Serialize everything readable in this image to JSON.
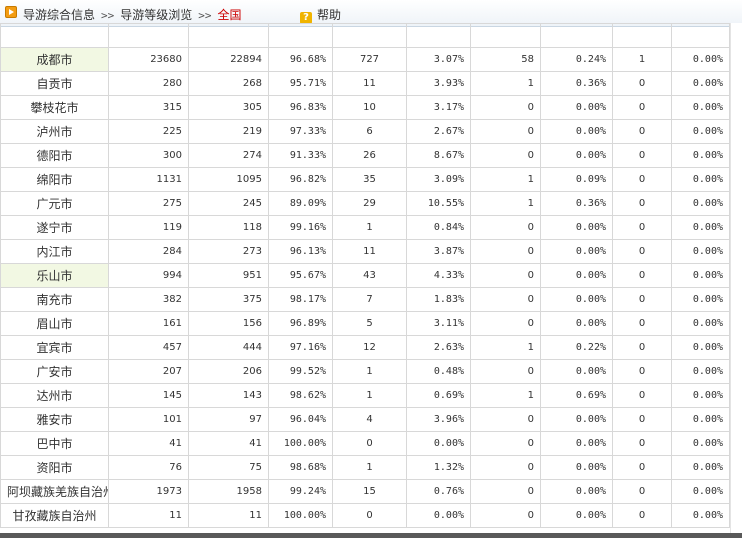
{
  "breadcrumb": {
    "items": [
      "导游综合信息",
      "导游等级浏览",
      "全国"
    ],
    "separator": ">>"
  },
  "help_label": "帮助",
  "highlight_color": "#f2f8e3",
  "rows": [
    {
      "city": "成都市",
      "c1": "23680",
      "c2": "22894",
      "p1": "96.68%",
      "c3": "727",
      "p2": "3.07%",
      "c4": "58",
      "p3": "0.24%",
      "c5": "1",
      "p4": "0.00%",
      "hl": true
    },
    {
      "city": "自贡市",
      "c1": "280",
      "c2": "268",
      "p1": "95.71%",
      "c3": "11",
      "p2": "3.93%",
      "c4": "1",
      "p3": "0.36%",
      "c5": "0",
      "p4": "0.00%"
    },
    {
      "city": "攀枝花市",
      "c1": "315",
      "c2": "305",
      "p1": "96.83%",
      "c3": "10",
      "p2": "3.17%",
      "c4": "0",
      "p3": "0.00%",
      "c5": "0",
      "p4": "0.00%"
    },
    {
      "city": "泸州市",
      "c1": "225",
      "c2": "219",
      "p1": "97.33%",
      "c3": "6",
      "p2": "2.67%",
      "c4": "0",
      "p3": "0.00%",
      "c5": "0",
      "p4": "0.00%"
    },
    {
      "city": "德阳市",
      "c1": "300",
      "c2": "274",
      "p1": "91.33%",
      "c3": "26",
      "p2": "8.67%",
      "c4": "0",
      "p3": "0.00%",
      "c5": "0",
      "p4": "0.00%"
    },
    {
      "city": "绵阳市",
      "c1": "1131",
      "c2": "1095",
      "p1": "96.82%",
      "c3": "35",
      "p2": "3.09%",
      "c4": "1",
      "p3": "0.09%",
      "c5": "0",
      "p4": "0.00%"
    },
    {
      "city": "广元市",
      "c1": "275",
      "c2": "245",
      "p1": "89.09%",
      "c3": "29",
      "p2": "10.55%",
      "c4": "1",
      "p3": "0.36%",
      "c5": "0",
      "p4": "0.00%"
    },
    {
      "city": "遂宁市",
      "c1": "119",
      "c2": "118",
      "p1": "99.16%",
      "c3": "1",
      "p2": "0.84%",
      "c4": "0",
      "p3": "0.00%",
      "c5": "0",
      "p4": "0.00%"
    },
    {
      "city": "内江市",
      "c1": "284",
      "c2": "273",
      "p1": "96.13%",
      "c3": "11",
      "p2": "3.87%",
      "c4": "0",
      "p3": "0.00%",
      "c5": "0",
      "p4": "0.00%"
    },
    {
      "city": "乐山市",
      "c1": "994",
      "c2": "951",
      "p1": "95.67%",
      "c3": "43",
      "p2": "4.33%",
      "c4": "0",
      "p3": "0.00%",
      "c5": "0",
      "p4": "0.00%",
      "hl": true
    },
    {
      "city": "南充市",
      "c1": "382",
      "c2": "375",
      "p1": "98.17%",
      "c3": "7",
      "p2": "1.83%",
      "c4": "0",
      "p3": "0.00%",
      "c5": "0",
      "p4": "0.00%"
    },
    {
      "city": "眉山市",
      "c1": "161",
      "c2": "156",
      "p1": "96.89%",
      "c3": "5",
      "p2": "3.11%",
      "c4": "0",
      "p3": "0.00%",
      "c5": "0",
      "p4": "0.00%"
    },
    {
      "city": "宜宾市",
      "c1": "457",
      "c2": "444",
      "p1": "97.16%",
      "c3": "12",
      "p2": "2.63%",
      "c4": "1",
      "p3": "0.22%",
      "c5": "0",
      "p4": "0.00%"
    },
    {
      "city": "广安市",
      "c1": "207",
      "c2": "206",
      "p1": "99.52%",
      "c3": "1",
      "p2": "0.48%",
      "c4": "0",
      "p3": "0.00%",
      "c5": "0",
      "p4": "0.00%"
    },
    {
      "city": "达州市",
      "c1": "145",
      "c2": "143",
      "p1": "98.62%",
      "c3": "1",
      "p2": "0.69%",
      "c4": "1",
      "p3": "0.69%",
      "c5": "0",
      "p4": "0.00%"
    },
    {
      "city": "雅安市",
      "c1": "101",
      "c2": "97",
      "p1": "96.04%",
      "c3": "4",
      "p2": "3.96%",
      "c4": "0",
      "p3": "0.00%",
      "c5": "0",
      "p4": "0.00%"
    },
    {
      "city": "巴中市",
      "c1": "41",
      "c2": "41",
      "p1": "100.00%",
      "c3": "0",
      "p2": "0.00%",
      "c4": "0",
      "p3": "0.00%",
      "c5": "0",
      "p4": "0.00%"
    },
    {
      "city": "资阳市",
      "c1": "76",
      "c2": "75",
      "p1": "98.68%",
      "c3": "1",
      "p2": "1.32%",
      "c4": "0",
      "p3": "0.00%",
      "c5": "0",
      "p4": "0.00%"
    },
    {
      "city": "阿坝藏族羌族自治州",
      "c1": "1973",
      "c2": "1958",
      "p1": "99.24%",
      "c3": "15",
      "p2": "0.76%",
      "c4": "0",
      "p3": "0.00%",
      "c5": "0",
      "p4": "0.00%"
    },
    {
      "city": "甘孜藏族自治州",
      "c1": "11",
      "c2": "11",
      "p1": "100.00%",
      "c3": "0",
      "p2": "0.00%",
      "c4": "0",
      "p3": "0.00%",
      "c5": "0",
      "p4": "0.00%"
    }
  ]
}
